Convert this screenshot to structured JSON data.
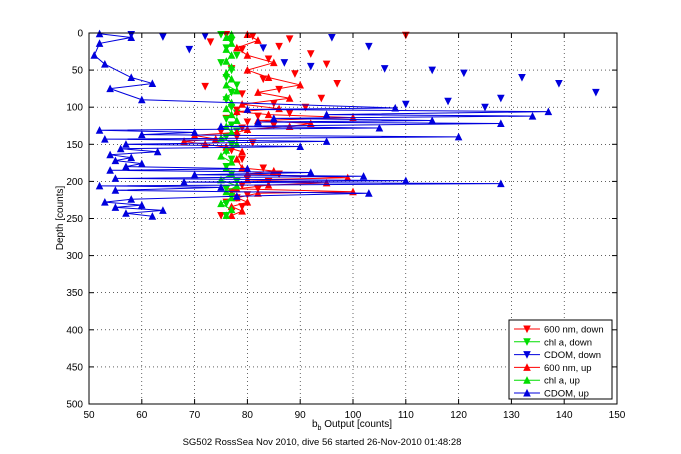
{
  "chart_data": {
    "type": "line",
    "ylabel": "Depth [counts]",
    "xlabel_base": "b",
    "xlabel_sub": "b",
    "xlabel_rest": " Output [counts]",
    "caption": "SG502 RossSea Nov 2010, dive 56 started 26-Nov-2010 01:48:28",
    "xlim": [
      50,
      150
    ],
    "ylim": [
      0,
      500
    ],
    "y_reversed": true,
    "grid": true,
    "grid_style": "dotted",
    "legend_position": "bottom-right",
    "xticks": [
      "50",
      "60",
      "70",
      "80",
      "90",
      "100",
      "110",
      "120",
      "130",
      "140",
      "150"
    ],
    "yticks": [
      "0",
      "50",
      "100",
      "150",
      "200",
      "250",
      "300",
      "350",
      "400",
      "450",
      "500"
    ],
    "series": [
      {
        "name": "600 nm, down",
        "color": "#ff0000",
        "marker": "triangle-down",
        "line": false,
        "points": [
          [
            76,
            2
          ],
          [
            81,
            4
          ],
          [
            88,
            8
          ],
          [
            110,
            3
          ],
          [
            73,
            12
          ],
          [
            86,
            18
          ],
          [
            79,
            22
          ],
          [
            92,
            28
          ],
          [
            84,
            35
          ],
          [
            95,
            42
          ],
          [
            77,
            48
          ],
          [
            89,
            55
          ],
          [
            83,
            62
          ],
          [
            97,
            68
          ],
          [
            72,
            72
          ],
          [
            86,
            76
          ],
          [
            79,
            82
          ],
          [
            94,
            88
          ],
          [
            85,
            95
          ],
          [
            91,
            100
          ],
          [
            78,
            104
          ],
          [
            88,
            108
          ],
          [
            82,
            112
          ],
          [
            76,
            115
          ],
          [
            80,
            120
          ],
          [
            85,
            124
          ],
          [
            79,
            128
          ],
          [
            75,
            133
          ],
          [
            78,
            140
          ],
          [
            81,
            148
          ],
          [
            77,
            158
          ],
          [
            79,
            170
          ],
          [
            83,
            182
          ],
          [
            86,
            190
          ],
          [
            80,
            196
          ],
          [
            84,
            200
          ],
          [
            79,
            205
          ],
          [
            82,
            210
          ],
          [
            77,
            214
          ],
          [
            80,
            218
          ],
          [
            78,
            222
          ],
          [
            76,
            228
          ],
          [
            79,
            234
          ],
          [
            77,
            240
          ],
          [
            75,
            246
          ]
        ]
      },
      {
        "name": "chl a, down",
        "color": "#00dd00",
        "marker": "triangle-down",
        "line": false,
        "points": [
          [
            75,
            2
          ],
          [
            77,
            10
          ],
          [
            76,
            20
          ],
          [
            78,
            30
          ],
          [
            75,
            40
          ],
          [
            77,
            50
          ],
          [
            76,
            60
          ],
          [
            78,
            70
          ],
          [
            77,
            80
          ],
          [
            76,
            90
          ],
          [
            77,
            100
          ],
          [
            78,
            108
          ],
          [
            76,
            116
          ],
          [
            77,
            124
          ],
          [
            78,
            132
          ],
          [
            76,
            140
          ],
          [
            77,
            150
          ],
          [
            76,
            160
          ],
          [
            77,
            170
          ],
          [
            76,
            180
          ],
          [
            77,
            190
          ],
          [
            78,
            200
          ],
          [
            76,
            210
          ],
          [
            77,
            220
          ],
          [
            76,
            230
          ],
          [
            77,
            240
          ],
          [
            76,
            246
          ]
        ]
      },
      {
        "name": "CDOM, down",
        "color": "#0000dd",
        "marker": "triangle-down",
        "line": false,
        "points": [
          [
            58,
            2
          ],
          [
            64,
            5
          ],
          [
            72,
            4
          ],
          [
            96,
            6
          ],
          [
            103,
            18
          ],
          [
            83,
            20
          ],
          [
            69,
            22
          ],
          [
            87,
            40
          ],
          [
            92,
            45
          ],
          [
            106,
            48
          ],
          [
            115,
            50
          ],
          [
            121,
            54
          ],
          [
            132,
            60
          ],
          [
            139,
            68
          ],
          [
            146,
            80
          ],
          [
            128,
            88
          ],
          [
            118,
            92
          ],
          [
            110,
            96
          ],
          [
            125,
            100
          ]
        ]
      },
      {
        "name": "600 nm, up",
        "color": "#ff0000",
        "marker": "triangle-up",
        "line": true,
        "points": [
          [
            77,
            246
          ],
          [
            79,
            240
          ],
          [
            77,
            234
          ],
          [
            80,
            228
          ],
          [
            78,
            222
          ],
          [
            82,
            216
          ],
          [
            100,
            214
          ],
          [
            78,
            210
          ],
          [
            84,
            205
          ],
          [
            95,
            202
          ],
          [
            80,
            198
          ],
          [
            99,
            195
          ],
          [
            80,
            190
          ],
          [
            85,
            186
          ],
          [
            79,
            182
          ],
          [
            78,
            170
          ],
          [
            79,
            160
          ],
          [
            76,
            154
          ],
          [
            72,
            150
          ],
          [
            68,
            146
          ],
          [
            74,
            143
          ],
          [
            70,
            138
          ],
          [
            78,
            134
          ],
          [
            80,
            130
          ],
          [
            88,
            126
          ],
          [
            92,
            122
          ],
          [
            82,
            118
          ],
          [
            100,
            114
          ],
          [
            84,
            110
          ],
          [
            78,
            106
          ],
          [
            86,
            102
          ],
          [
            79,
            96
          ],
          [
            88,
            88
          ],
          [
            82,
            80
          ],
          [
            90,
            70
          ],
          [
            84,
            60
          ],
          [
            80,
            50
          ],
          [
            85,
            40
          ],
          [
            80,
            30
          ],
          [
            78,
            20
          ],
          [
            82,
            10
          ],
          [
            80,
            2
          ]
        ]
      },
      {
        "name": "chl a, up",
        "color": "#00dd00",
        "marker": "triangle-up",
        "line": true,
        "points": [
          [
            76,
            246
          ],
          [
            77,
            238
          ],
          [
            75,
            230
          ],
          [
            77,
            222
          ],
          [
            76,
            214
          ],
          [
            78,
            206
          ],
          [
            75,
            198
          ],
          [
            77,
            190
          ],
          [
            76,
            182
          ],
          [
            77,
            174
          ],
          [
            75,
            166
          ],
          [
            76,
            158
          ],
          [
            78,
            150
          ],
          [
            75,
            142
          ],
          [
            77,
            134
          ],
          [
            76,
            126
          ],
          [
            78,
            118
          ],
          [
            77,
            110
          ],
          [
            76,
            102
          ],
          [
            77,
            94
          ],
          [
            76,
            86
          ],
          [
            78,
            78
          ],
          [
            76,
            70
          ],
          [
            77,
            62
          ],
          [
            76,
            54
          ],
          [
            77,
            46
          ],
          [
            76,
            38
          ],
          [
            77,
            30
          ],
          [
            76,
            22
          ],
          [
            77,
            14
          ],
          [
            76,
            6
          ],
          [
            77,
            2
          ]
        ]
      },
      {
        "name": "CDOM, up",
        "color": "#0000dd",
        "marker": "triangle-up",
        "line": true,
        "points": [
          [
            62,
            247
          ],
          [
            57,
            243
          ],
          [
            64,
            239
          ],
          [
            55,
            235
          ],
          [
            60,
            232
          ],
          [
            53,
            228
          ],
          [
            58,
            224
          ],
          [
            78,
            220
          ],
          [
            103,
            216
          ],
          [
            55,
            212
          ],
          [
            75,
            208
          ],
          [
            52,
            206
          ],
          [
            128,
            203
          ],
          [
            68,
            201
          ],
          [
            110,
            199
          ],
          [
            55,
            196
          ],
          [
            102,
            193
          ],
          [
            70,
            191
          ],
          [
            92,
            188
          ],
          [
            54,
            185
          ],
          [
            80,
            183
          ],
          [
            57,
            180
          ],
          [
            60,
            176
          ],
          [
            55,
            172
          ],
          [
            58,
            168
          ],
          [
            54,
            164
          ],
          [
            63,
            160
          ],
          [
            56,
            156
          ],
          [
            90,
            153
          ],
          [
            57,
            150
          ],
          [
            95,
            146
          ],
          [
            53,
            143
          ],
          [
            120,
            140
          ],
          [
            60,
            137
          ],
          [
            70,
            134
          ],
          [
            52,
            131
          ],
          [
            105,
            128
          ],
          [
            75,
            126
          ],
          [
            128,
            122
          ],
          [
            82,
            120
          ],
          [
            115,
            118
          ],
          [
            85,
            115
          ],
          [
            134,
            112
          ],
          [
            95,
            110
          ],
          [
            137,
            106
          ],
          [
            80,
            103
          ],
          [
            108,
            101
          ],
          [
            60,
            90
          ],
          [
            54,
            75
          ],
          [
            62,
            68
          ],
          [
            58,
            60
          ],
          [
            53,
            42
          ],
          [
            51,
            30
          ],
          [
            52,
            14
          ],
          [
            58,
            6
          ],
          [
            52,
            1
          ]
        ]
      }
    ]
  }
}
